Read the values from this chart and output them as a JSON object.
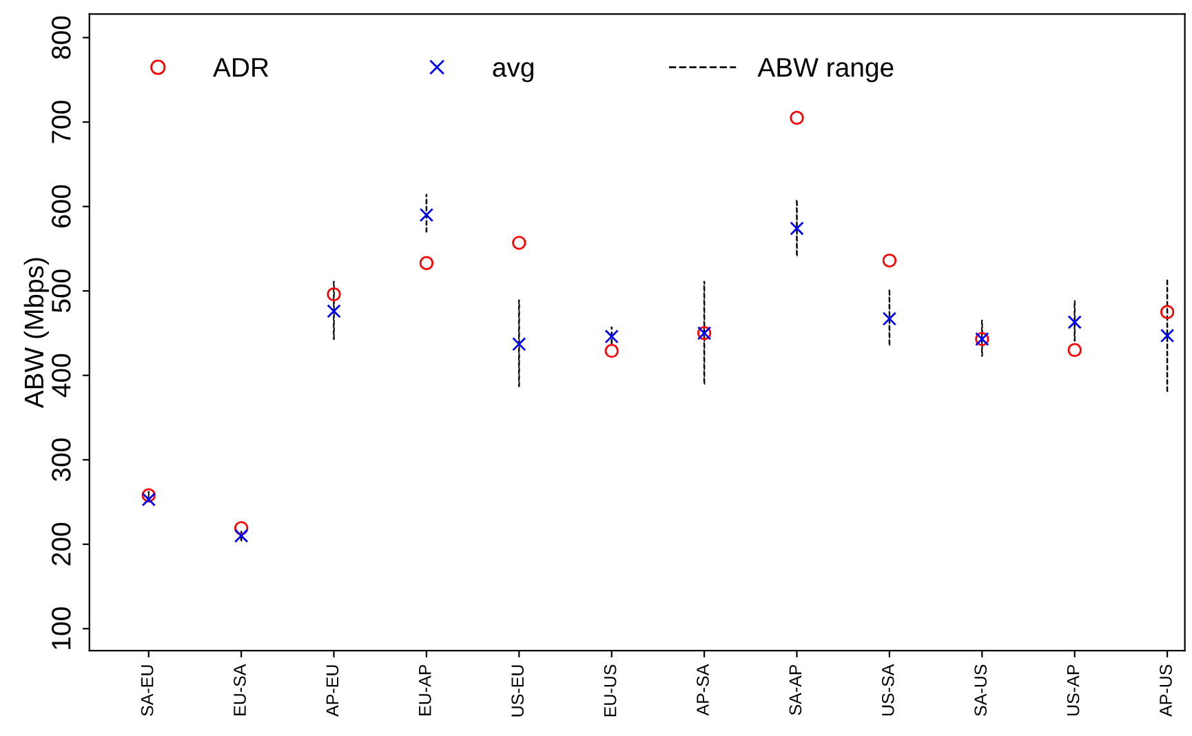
{
  "chart_data": {
    "type": "scatter",
    "ylabel": "ABW (Mbps)",
    "categories": [
      "SA-EU",
      "EU-SA",
      "AP-EU",
      "EU-AP",
      "US-EU",
      "EU-US",
      "AP-SA",
      "SA-AP",
      "US-SA",
      "SA-US",
      "US-AP",
      "AP-US"
    ],
    "series": [
      {
        "name": "ADR",
        "marker": "circle",
        "color": "#ff0000",
        "values": [
          258,
          219,
          496,
          533,
          557,
          429,
          450,
          705,
          536,
          443,
          430,
          475
        ]
      },
      {
        "name": "avg",
        "marker": "cross",
        "color": "#0000ff",
        "values": [
          253,
          210,
          476,
          590,
          437,
          446,
          450,
          574,
          467,
          443,
          463,
          447
        ]
      },
      {
        "name": "ABW range",
        "type": "bar",
        "line_style": "dashed",
        "color": "#000000",
        "base": [
          250,
          204,
          443,
          570,
          387,
          438,
          390,
          542,
          436,
          423,
          441,
          381
        ],
        "values": [
          12,
          11,
          68,
          44,
          102,
          19,
          121,
          66,
          66,
          42,
          47,
          133
        ]
      }
    ],
    "ylim": [
      74,
      828
    ],
    "yticks": [
      100,
      200,
      300,
      400,
      500,
      600,
      700,
      800
    ],
    "legend": "top left",
    "grid": false
  }
}
